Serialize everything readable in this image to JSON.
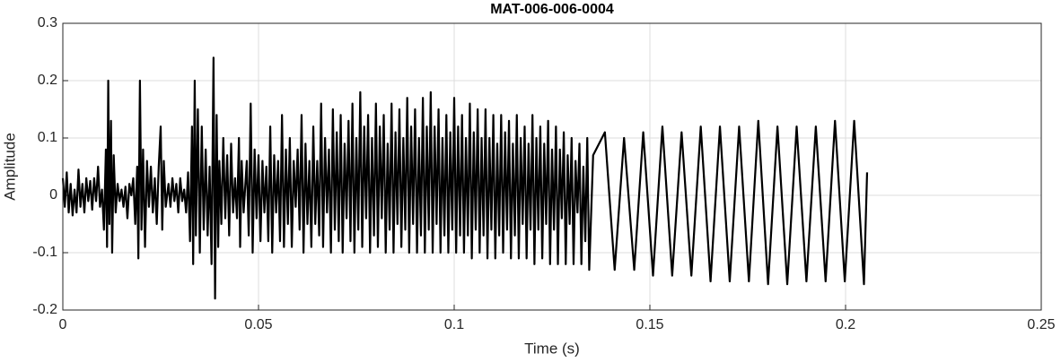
{
  "chart_data": {
    "type": "line",
    "title": "MAT-006-006-0004",
    "x_label": "Time (s)",
    "y_label": "Amplitude",
    "color": "#000000",
    "grid": true,
    "xlim": [
      0,
      0.25
    ],
    "xticks": [
      0,
      0.05,
      0.1,
      0.15,
      0.2,
      0.25
    ],
    "ylim": [
      -0.2,
      0.3
    ],
    "yticks": [
      -0.2,
      -0.1,
      0,
      0.1,
      0.2,
      0.3
    ],
    "x": [
      0,
      0.0005,
      0.001,
      0.0015,
      0.002,
      0.0025,
      0.003,
      0.0035,
      0.004,
      0.0045,
      0.005,
      0.0055,
      0.006,
      0.0065,
      0.007,
      0.0075,
      0.008,
      0.0085,
      0.009,
      0.0095,
      0.01,
      0.0105,
      0.011,
      0.0113,
      0.0116,
      0.0119,
      0.0123,
      0.0126,
      0.013,
      0.0135,
      0.014,
      0.0145,
      0.015,
      0.0155,
      0.016,
      0.0165,
      0.017,
      0.0175,
      0.018,
      0.0185,
      0.019,
      0.0193,
      0.0197,
      0.0201,
      0.0205,
      0.021,
      0.0215,
      0.022,
      0.0225,
      0.023,
      0.0235,
      0.024,
      0.0245,
      0.025,
      0.0254,
      0.0258,
      0.0263,
      0.027,
      0.0275,
      0.028,
      0.0285,
      0.029,
      0.0295,
      0.03,
      0.0305,
      0.031,
      0.0315,
      0.032,
      0.0325,
      0.033,
      0.0333,
      0.0337,
      0.034,
      0.0345,
      0.035,
      0.0355,
      0.036,
      0.0365,
      0.037,
      0.0375,
      0.038,
      0.0385,
      0.0389,
      0.0393,
      0.0397,
      0.04,
      0.0405,
      0.041,
      0.0415,
      0.042,
      0.0425,
      0.043,
      0.0435,
      0.044,
      0.0445,
      0.045,
      0.0453,
      0.0457,
      0.0462,
      0.047,
      0.0475,
      0.048,
      0.0485,
      0.049,
      0.0495,
      0.05,
      0.0505,
      0.051,
      0.0515,
      0.052,
      0.0525,
      0.053,
      0.0535,
      0.054,
      0.0545,
      0.055,
      0.0555,
      0.056,
      0.0565,
      0.057,
      0.0575,
      0.058,
      0.0585,
      0.059,
      0.0595,
      0.06,
      0.0605,
      0.061,
      0.0615,
      0.062,
      0.0625,
      0.063,
      0.0635,
      0.064,
      0.0645,
      0.065,
      0.0655,
      0.066,
      0.0665,
      0.067,
      0.0675,
      0.068,
      0.0685,
      0.069,
      0.0695,
      0.07,
      0.0705,
      0.071,
      0.0715,
      0.072,
      0.0725,
      0.073,
      0.0735,
      0.074,
      0.0745,
      0.075,
      0.0755,
      0.076,
      0.0765,
      0.077,
      0.0775,
      0.078,
      0.0785,
      0.079,
      0.0795,
      0.08,
      0.0805,
      0.081,
      0.0815,
      0.082,
      0.0825,
      0.083,
      0.0835,
      0.084,
      0.0845,
      0.085,
      0.0855,
      0.086,
      0.0865,
      0.087,
      0.0875,
      0.088,
      0.0885,
      0.089,
      0.0895,
      0.09,
      0.0905,
      0.091,
      0.0915,
      0.092,
      0.0925,
      0.093,
      0.0935,
      0.094,
      0.0945,
      0.095,
      0.0955,
      0.096,
      0.0965,
      0.097,
      0.0975,
      0.098,
      0.0985,
      0.099,
      0.0995,
      0.1,
      0.1005,
      0.101,
      0.1015,
      0.102,
      0.1025,
      0.103,
      0.1035,
      0.104,
      0.1045,
      0.105,
      0.1055,
      0.106,
      0.1065,
      0.107,
      0.1075,
      0.108,
      0.1085,
      0.109,
      0.1095,
      0.11,
      0.1105,
      0.111,
      0.1115,
      0.112,
      0.1125,
      0.113,
      0.1135,
      0.114,
      0.1145,
      0.115,
      0.1155,
      0.116,
      0.1165,
      0.117,
      0.1175,
      0.118,
      0.1185,
      0.119,
      0.1195,
      0.12,
      0.1205,
      0.121,
      0.1215,
      0.122,
      0.1225,
      0.123,
      0.1235,
      0.124,
      0.1245,
      0.125,
      0.1255,
      0.126,
      0.1265,
      0.127,
      0.1275,
      0.128,
      0.1285,
      0.129,
      0.1295,
      0.13,
      0.1305,
      0.131,
      0.1315,
      0.132,
      0.1325,
      0.133,
      0.1335,
      0.134,
      0.1345,
      0.1355,
      0.1385,
      0.141,
      0.1434,
      0.146,
      0.1483,
      0.1508,
      0.1532,
      0.1557,
      0.1581,
      0.1606,
      0.163,
      0.1655,
      0.1679,
      0.1704,
      0.1728,
      0.1753,
      0.1777,
      0.1802,
      0.1826,
      0.1851,
      0.1875,
      0.19,
      0.1924,
      0.1949,
      0.1973,
      0.1998,
      0.2022,
      0.2047,
      0.2055
    ],
    "values": [
      0.03,
      -0.02,
      0.04,
      -0.03,
      0.02,
      -0.035,
      0.01,
      -0.03,
      0.045,
      -0.02,
      0.02,
      -0.03,
      0.03,
      -0.01,
      0.025,
      -0.025,
      0.03,
      -0.01,
      0.05,
      -0.02,
      0.01,
      -0.06,
      0.08,
      -0.09,
      0.2,
      -0.05,
      0.13,
      -0.1,
      0.07,
      -0.03,
      0.02,
      -0.01,
      0.01,
      -0.02,
      0.015,
      -0.04,
      0.02,
      0,
      0.03,
      -0.05,
      0.05,
      -0.11,
      0.2,
      -0.06,
      0.08,
      -0.09,
      0.06,
      -0.02,
      0.05,
      -0.03,
      0.03,
      -0.05,
      0.05,
      0.12,
      -0.06,
      0.06,
      -0.02,
      0.02,
      -0.02,
      0.03,
      -0.01,
      0.02,
      -0.03,
      0.03,
      -0.01,
      0.01,
      -0.03,
      0.04,
      -0.08,
      0.12,
      -0.12,
      0.2,
      -0.07,
      0.15,
      -0.1,
      0.12,
      -0.06,
      0.08,
      -0.07,
      0.05,
      -0.12,
      0.24,
      -0.18,
      0.14,
      -0.09,
      0.06,
      -0.05,
      0.1,
      -0.04,
      0.07,
      -0.07,
      0.09,
      -0.03,
      0.03,
      -0.04,
      0.1,
      -0.09,
      0.06,
      -0.03,
      0.06,
      -0.07,
      0.16,
      -0.1,
      0.08,
      -0.04,
      0.07,
      -0.08,
      0.06,
      -0.03,
      0.05,
      -0.08,
      0.12,
      -0.1,
      0.07,
      -0.03,
      0.06,
      -0.08,
      0.14,
      -0.09,
      0.08,
      -0.05,
      0.1,
      -0.09,
      0.06,
      -0.02,
      0.08,
      -0.06,
      0.14,
      -0.1,
      0.09,
      -0.05,
      0.06,
      -0.09,
      0.12,
      -0.05,
      0.06,
      -0.07,
      0.16,
      -0.09,
      0.1,
      -0.03,
      0.08,
      -0.1,
      0.15,
      -0.06,
      0.11,
      -0.08,
      0.14,
      -0.1,
      0.09,
      -0.04,
      0.13,
      -0.08,
      0.16,
      -0.1,
      0.1,
      -0.06,
      0.18,
      -0.09,
      0.12,
      -0.04,
      0.14,
      -0.1,
      0.1,
      -0.07,
      0.16,
      -0.09,
      0.12,
      -0.04,
      0.14,
      -0.1,
      0.09,
      -0.06,
      0.16,
      -0.1,
      0.11,
      -0.05,
      0.15,
      -0.09,
      0.1,
      -0.06,
      0.17,
      -0.1,
      0.12,
      -0.05,
      0.15,
      -0.1,
      0.1,
      -0.07,
      0.17,
      -0.1,
      0.12,
      -0.06,
      0.18,
      -0.1,
      0.12,
      -0.05,
      0.15,
      -0.1,
      0.1,
      -0.07,
      0.14,
      -0.1,
      0.11,
      -0.06,
      0.17,
      -0.1,
      0.12,
      -0.07,
      0.14,
      -0.1,
      0.1,
      -0.07,
      0.16,
      -0.11,
      0.11,
      -0.06,
      0.15,
      -0.1,
      0.1,
      -0.07,
      0.15,
      -0.11,
      0.1,
      -0.06,
      0.14,
      -0.11,
      0.09,
      -0.07,
      0.14,
      -0.1,
      0.11,
      -0.06,
      0.13,
      -0.11,
      0.09,
      -0.07,
      0.14,
      -0.11,
      0.1,
      -0.05,
      0.12,
      -0.11,
      0.09,
      -0.06,
      0.14,
      -0.12,
      0.1,
      -0.06,
      0.12,
      -0.11,
      0.09,
      -0.05,
      0.13,
      -0.12,
      0.08,
      -0.06,
      0.12,
      -0.12,
      0.08,
      -0.04,
      0.11,
      -0.12,
      0.07,
      -0.05,
      0.1,
      -0.12,
      0.06,
      -0.03,
      0.09,
      -0.12,
      0.05,
      -0.08,
      0.1,
      -0.13,
      0.07,
      0.11,
      -0.13,
      0.1,
      -0.13,
      0.11,
      -0.14,
      0.12,
      -0.14,
      0.11,
      -0.14,
      0.12,
      -0.15,
      0.12,
      -0.15,
      0.12,
      -0.15,
      0.13,
      -0.155,
      0.12,
      -0.155,
      0.12,
      -0.15,
      0.12,
      -0.15,
      0.13,
      -0.15,
      0.13,
      -0.155,
      0.04
    ]
  }
}
